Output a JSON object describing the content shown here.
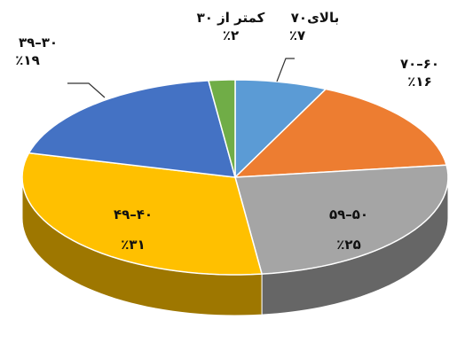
{
  "chart_data": {
    "type": "pie",
    "style": "3d",
    "start_slice_direction": "clockwise from top",
    "slices": [
      {
        "label": "بالای۷۰",
        "percent_label": "٪۷",
        "value": 7,
        "color": "#5B9BD5"
      },
      {
        "label": "۷۰–۶۰",
        "percent_label": "٪۱۶",
        "value": 16,
        "color": "#ED7D31"
      },
      {
        "label": "۵۹–۵۰",
        "percent_label": "٪۲۵",
        "value": 25,
        "color": "#A5A5A5"
      },
      {
        "label": "۴۹–۴۰",
        "percent_label": "٪۳۱",
        "value": 31,
        "color": "#FFC000"
      },
      {
        "label": "۳۹–۳۰",
        "percent_label": "٪۱۹",
        "value": 19,
        "color": "#4472C4"
      },
      {
        "label": "کمتر از ۳۰",
        "percent_label": "٪۲",
        "value": 2,
        "color": "#70AD47"
      }
    ]
  }
}
